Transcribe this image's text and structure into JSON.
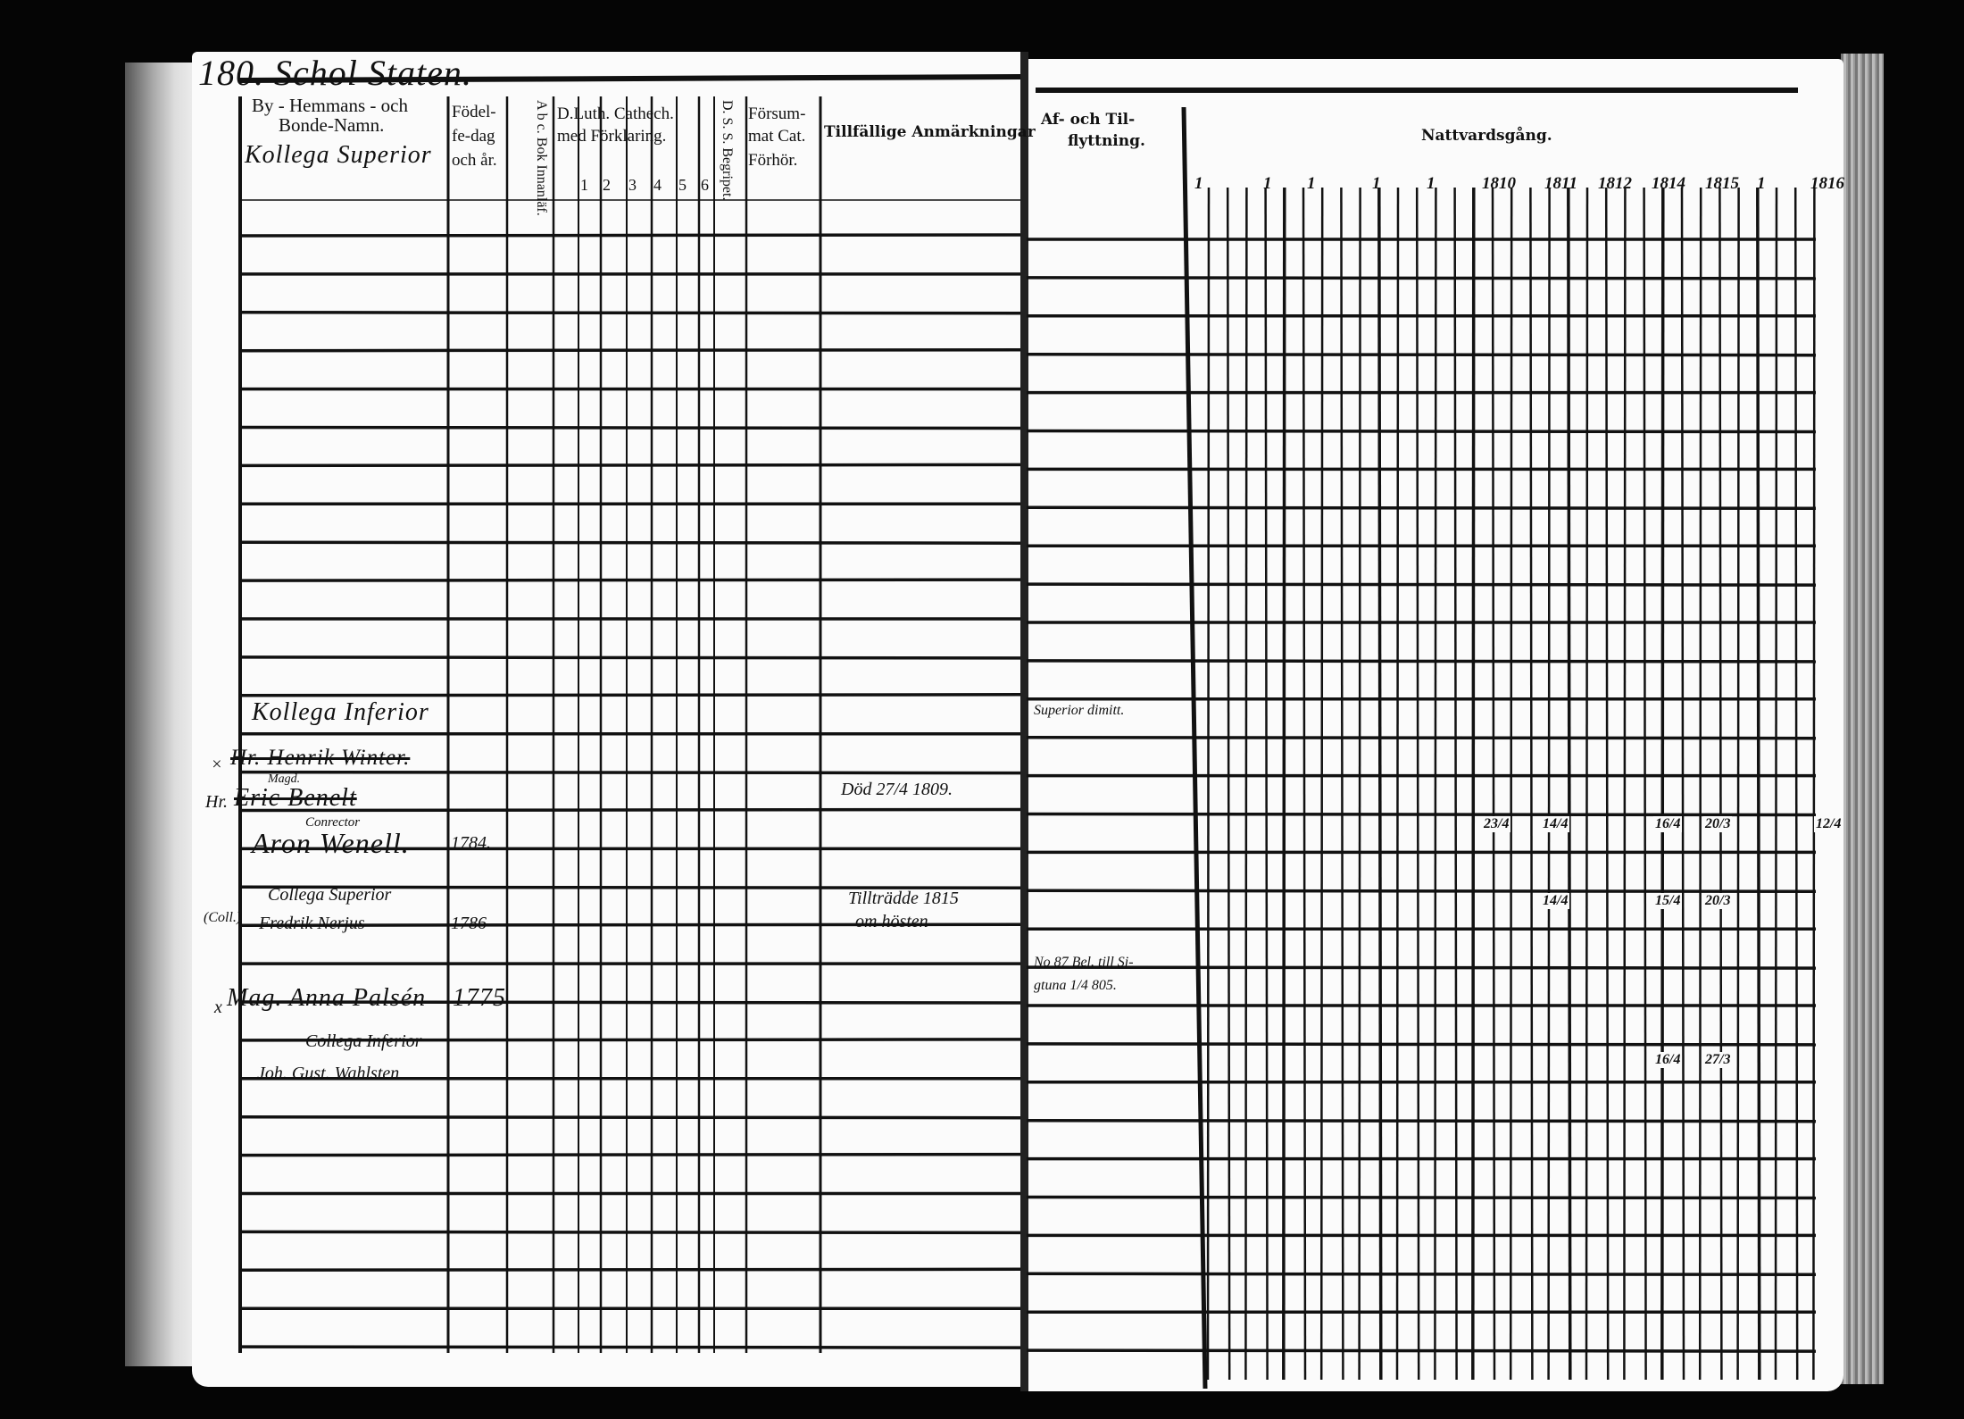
{
  "title": "180. Schol Staten.",
  "left_page": {
    "headers": {
      "name_line1": "By - Hemmans - och",
      "name_line2": "Bonde-Namn.",
      "birth_line1": "Födel-",
      "birth_line2": "fe-dag",
      "birth_line3": "och år.",
      "abc": "A b c. Bok Innanläf.",
      "luth_line1": "D.Luth. Cathech.",
      "luth_line2": "med Förklaring.",
      "luth_numbers": [
        "1",
        "2",
        "3",
        "4",
        "5",
        "6"
      ],
      "ds": "D. S. S. Begripet.",
      "forsum_line1": "Försum-",
      "forsum_line2": "mat Cat.",
      "forsum_line3": "Förhör.",
      "remarks": "Tillfällige Anmärkningar"
    },
    "entries": {
      "kollega_superior": "Kollega Superior",
      "kollega_inferior": "Kollega Inferior",
      "winter_mark": "×",
      "winter": "Hr. Henrik Winter.",
      "benelt_title": "Magd.",
      "benelt_mark": "Hr.",
      "benelt": "Eric Benelt",
      "wenell_title": "Conrector",
      "wenell": "Aron Wenell.",
      "wenell_birth": "1784.",
      "collega_superior": "Collega Superior",
      "nerjus_mark": "(Coll.)",
      "nerjus": "Fredrik Nerjus",
      "nerjus_birth": "1786",
      "palsen_mark": "x",
      "palsen": "Mag. Anna Palsén",
      "palsen_birth": "1775",
      "collega_inferior": "Collega Inferior",
      "wahlsten": "Joh. Gust. Wahlsten"
    },
    "remarks": {
      "benelt_death": "Död 27/4 1809.",
      "nerjus_line1": "Tillträdde 1815",
      "nerjus_line2": "om hösten"
    }
  },
  "right_page": {
    "headers": {
      "moving_line1": "Af- och Til-",
      "moving_line2": "flyttning.",
      "communion": "Nattvardsgång.",
      "years": [
        "1",
        "1",
        "1",
        "1",
        "1",
        "1810",
        "1811",
        "1812",
        "1814",
        "1815",
        "1",
        "1816"
      ]
    },
    "moving": {
      "inferior_note": "Superior dimitt.",
      "palsen_line1": "No 87 Bel. till Si-",
      "palsen_line2": "gtuna 1/4 805."
    },
    "communion_dates": {
      "wenell": [
        "23/4",
        "14/4",
        "16/4",
        "20/3",
        "12/4"
      ],
      "nerjus": [
        "14/4",
        "15/4",
        "20/3"
      ],
      "wahlsten": [
        "16/4",
        "27/3"
      ]
    }
  },
  "colors": {
    "ink": "#111111",
    "paper": "#fbfbfb",
    "background": "#050505"
  }
}
